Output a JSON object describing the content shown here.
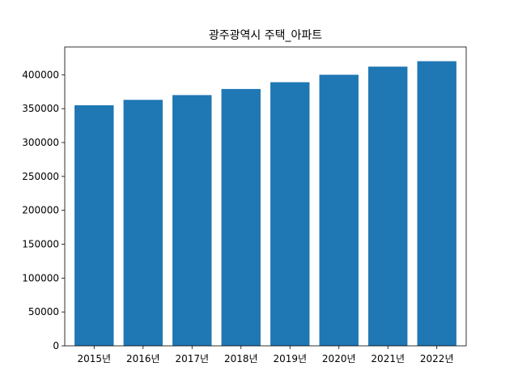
{
  "chart_data": {
    "type": "bar",
    "title": "광주광역시 주택_아파트",
    "xlabel": "",
    "ylabel": "",
    "categories": [
      "2015년",
      "2016년",
      "2017년",
      "2018년",
      "2019년",
      "2020년",
      "2021년",
      "2022년"
    ],
    "values": [
      355000,
      363000,
      370000,
      379000,
      389000,
      400000,
      412000,
      420000
    ],
    "ylim": [
      0,
      441000
    ],
    "yticks": [
      0,
      50000,
      100000,
      150000,
      200000,
      250000,
      300000,
      350000,
      400000
    ],
    "ytick_labels": [
      "0",
      "50000",
      "100000",
      "150000",
      "200000",
      "250000",
      "300000",
      "350000",
      "400000"
    ],
    "grid": false,
    "legend": "none",
    "bar_color": "#1f77b4"
  }
}
